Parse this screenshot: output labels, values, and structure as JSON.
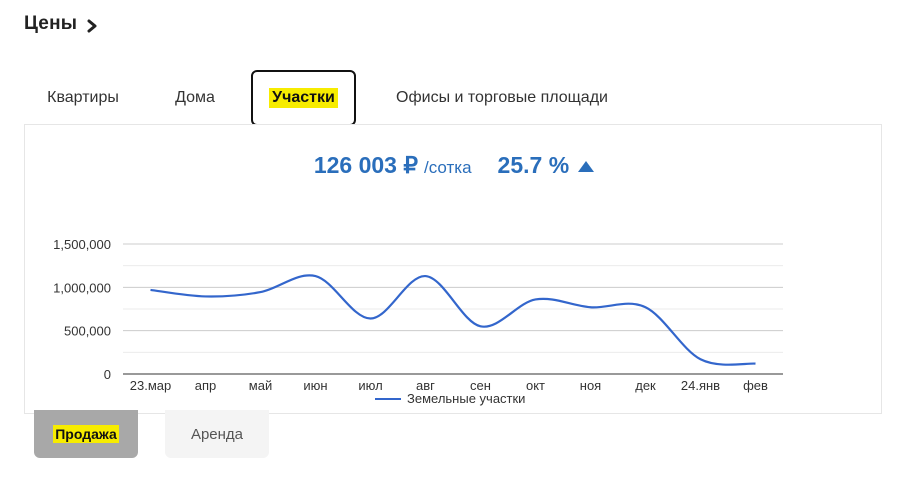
{
  "header": {
    "title": "Цены",
    "chevron_icon": "chevron-right-icon"
  },
  "tabs": [
    {
      "label": "Квартиры",
      "active": false
    },
    {
      "label": "Дома",
      "active": false
    },
    {
      "label": "Участки",
      "active": true
    },
    {
      "label": "Офисы и торговые площади",
      "active": false
    }
  ],
  "stats": {
    "price": "126 003 ₽",
    "unit": "/сотка",
    "change": "25.7 %",
    "trend_icon": "up-arrow-icon",
    "color": "#2a6ebb"
  },
  "chart_data": {
    "type": "line",
    "categories": [
      "23.мар",
      "апр",
      "май",
      "июн",
      "июл",
      "авг",
      "сен",
      "окт",
      "ноя",
      "дек",
      "24.янв",
      "фев"
    ],
    "series": [
      {
        "name": "Земельные участки",
        "color": "#3366cc",
        "values": [
          970000,
          895000,
          945000,
          1130000,
          640000,
          1130000,
          550000,
          860000,
          770000,
          770000,
          170000,
          120000
        ]
      }
    ],
    "yticks": [
      "1,500,000",
      "1,000,000",
      "500,000",
      "0"
    ],
    "ytick_values": [
      1500000,
      1000000,
      500000,
      0
    ],
    "ylim": [
      0,
      1500000
    ],
    "grid": true,
    "legend_position": "bottom"
  },
  "modes": [
    {
      "label": "Продажа",
      "active": true
    },
    {
      "label": "Аренда",
      "active": false
    }
  ]
}
